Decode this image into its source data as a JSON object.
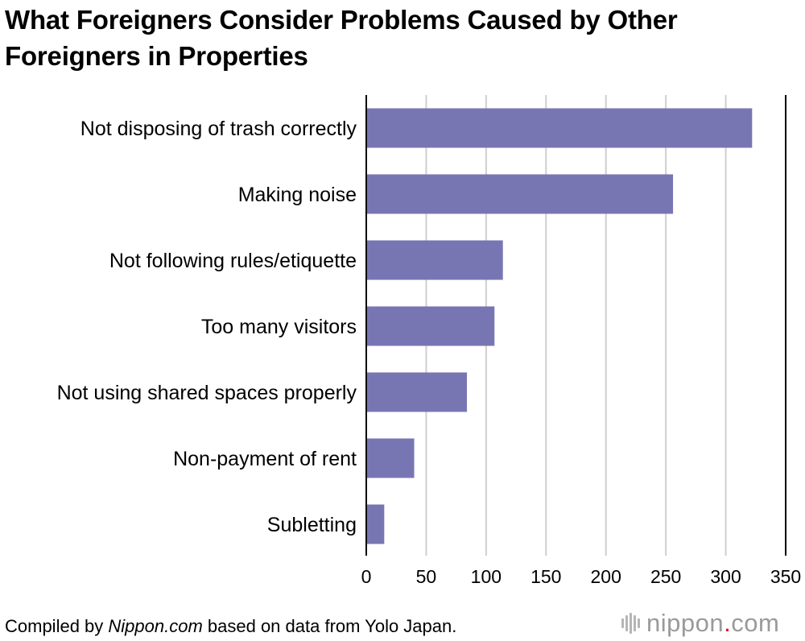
{
  "chart_data": {
    "type": "bar",
    "orientation": "horizontal",
    "title": "What Foreigners Consider Problems Caused by Other Foreigners in Properties",
    "categories": [
      "Not disposing of trash correctly",
      "Making noise",
      "Not following rules/etiquette",
      "Too many visitors",
      "Not using shared spaces properly",
      "Non-payment of rent",
      "Subletting"
    ],
    "values": [
      322,
      256,
      114,
      107,
      84,
      40,
      15
    ],
    "xlim": [
      0,
      350
    ],
    "xticks": [
      0,
      50,
      100,
      150,
      200,
      250,
      300,
      350
    ],
    "xlabel": "",
    "ylabel": "",
    "grid": true,
    "bar_color": "#7876b2"
  },
  "source": {
    "prefix": "Compiled by ",
    "site": "Nippon.com",
    "suffix": " based on data from Yolo Japan."
  },
  "brand": {
    "name": "nippon",
    "dot": ".",
    "tld": "com",
    "accent_color": "#e0101d"
  }
}
